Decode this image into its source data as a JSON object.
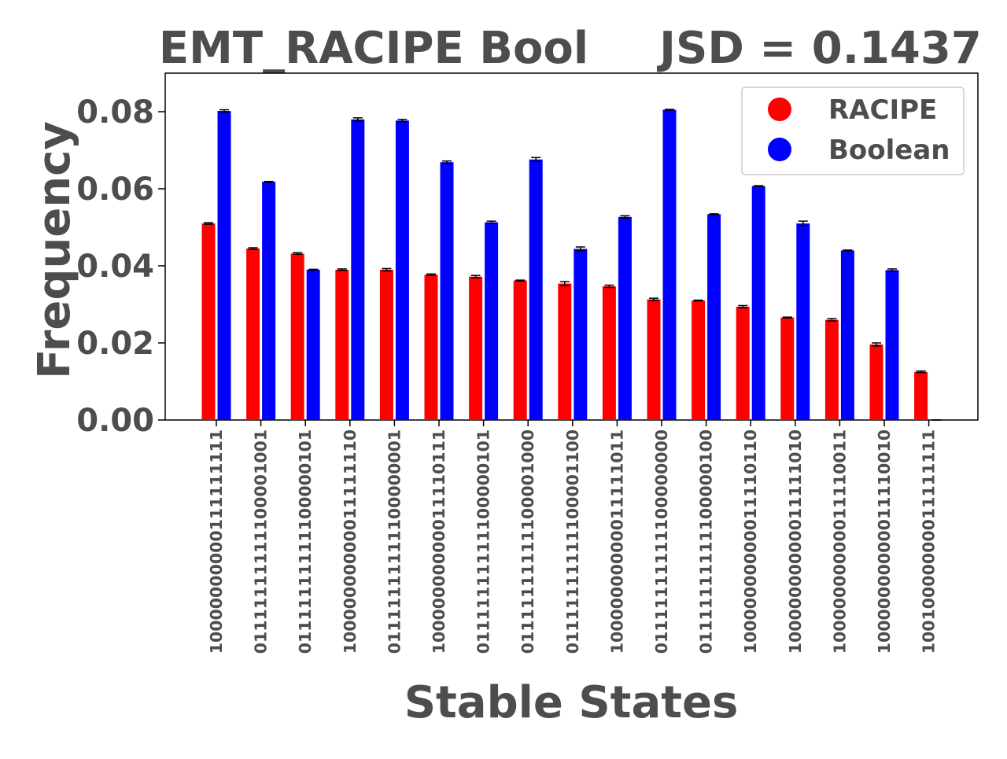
{
  "chart_data": {
    "type": "bar",
    "title_left": "EMT_RACIPE Bool",
    "title_right": "JSD = 0.1437",
    "xlabel": "Stable States",
    "ylabel": "Frequency",
    "ylim": [
      0,
      0.09
    ],
    "yticks": [
      "0.00",
      "0.02",
      "0.04",
      "0.06",
      "0.08"
    ],
    "ytick_values": [
      0,
      0.02,
      0.04,
      0.06,
      0.08
    ],
    "grid": false,
    "legend_position": "top-right",
    "categories": [
      "10000000000111111111",
      "01111111111100001001",
      "01111111111100000101",
      "10000000000011111110",
      "01111111111100000001",
      "10000000000011110111",
      "01111111111100000101",
      "01111111111100001000",
      "01111111111100001100",
      "10000000000011111011",
      "01111111111100000000",
      "01111111111100000100",
      "10000000000011110110",
      "10000000000011111010",
      "10000000000011110011",
      "10000000000011110010",
      "10010000000011111111"
    ],
    "series": [
      {
        "name": "RACIPE",
        "color": "#ff0000",
        "values": [
          0.051,
          0.0445,
          0.0432,
          0.039,
          0.039,
          0.0377,
          0.0372,
          0.0362,
          0.0354,
          0.0347,
          0.0313,
          0.031,
          0.0294,
          0.0266,
          0.026,
          0.0196,
          0.0125
        ],
        "errors": [
          0.0002,
          0.0002,
          0.0002,
          0.0002,
          0.0003,
          0.0002,
          0.0003,
          0.0001,
          0.0005,
          0.0003,
          0.0003,
          0.0001,
          0.0003,
          0.0001,
          0.0003,
          0.0004,
          0.0002
        ]
      },
      {
        "name": "Boolean",
        "color": "#0000ff",
        "values": [
          0.0802,
          0.0618,
          0.039,
          0.078,
          0.0777,
          0.0669,
          0.0513,
          0.0676,
          0.0444,
          0.0527,
          0.0805,
          0.0534,
          0.0607,
          0.051,
          0.044,
          0.0389,
          0.0
        ],
        "errors": [
          0.0003,
          0.0001,
          0.0001,
          0.0004,
          0.0003,
          0.0003,
          0.0003,
          0.0005,
          0.0005,
          0.0003,
          0.0001,
          0.0001,
          0.0001,
          0.0006,
          0.0001,
          0.0003,
          0.0
        ]
      }
    ],
    "colors": {
      "text": "#4d4d4d",
      "axis": "#000000",
      "legend_border": "#cccccc"
    }
  }
}
